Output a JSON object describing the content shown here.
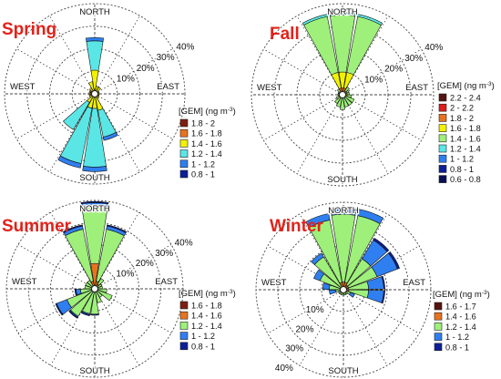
{
  "unit_label": "[GEM] (ng m",
  "unit_power": "-3",
  "unit_close": ")",
  "chart_data": [
    {
      "type": "windrose",
      "title": "Spring",
      "directions": [
        "NORTH",
        "EAST",
        "SOUTH",
        "WEST"
      ],
      "radial_ticks": [
        "10%",
        "20%",
        "30%",
        "40%"
      ],
      "rmax": 40,
      "legend": [
        {
          "label": "1.8 - 2",
          "color": "#7b1f12"
        },
        {
          "label": "1.6 - 1.8",
          "color": "#e8731f"
        },
        {
          "label": "1.4 - 1.6",
          "color": "#f2f200"
        },
        {
          "label": "1.2 - 1.4",
          "color": "#5be6e6"
        },
        {
          "label": "1 - 1.2",
          "color": "#2f7ff0"
        },
        {
          "label": "0.8 - 1",
          "color": "#0c1f96"
        }
      ],
      "petals": [
        {
          "dir": 0,
          "segments": [
            0.5,
            1.5,
            8.5,
            13,
            1.5,
            0
          ]
        },
        {
          "dir": 20,
          "segments": [
            0.5,
            1,
            2,
            0,
            0,
            0
          ]
        },
        {
          "dir": 40,
          "segments": [
            0.5,
            1,
            2,
            0,
            0,
            0
          ]
        },
        {
          "dir": 60,
          "segments": [
            0.5,
            1,
            0.5,
            0,
            0,
            0
          ]
        },
        {
          "dir": 80,
          "segments": [
            0.5,
            0.5,
            1,
            0,
            0,
            0
          ]
        },
        {
          "dir": 100,
          "segments": [
            0.5,
            1,
            0.5,
            0,
            0,
            0
          ]
        },
        {
          "dir": 120,
          "segments": [
            0.5,
            1,
            0.5,
            0,
            0,
            0
          ]
        },
        {
          "dir": 140,
          "segments": [
            0.5,
            1,
            1,
            0,
            0,
            0
          ]
        },
        {
          "dir": 160,
          "segments": [
            0.5,
            1,
            6,
            12,
            1.5,
            0
          ]
        },
        {
          "dir": 180,
          "segments": [
            0.5,
            1,
            5,
            26,
            2,
            0
          ]
        },
        {
          "dir": 200,
          "segments": [
            0.5,
            1,
            5,
            25,
            2,
            0
          ]
        },
        {
          "dir": 220,
          "segments": [
            0.5,
            1,
            3,
            14,
            0,
            0
          ]
        },
        {
          "dir": 240,
          "segments": [
            0.5,
            1,
            1,
            0,
            0,
            0
          ]
        },
        {
          "dir": 260,
          "segments": [
            0.5,
            1.5,
            0.5,
            0,
            0,
            0
          ]
        },
        {
          "dir": 280,
          "segments": [
            0.5,
            1.5,
            0.5,
            0,
            0,
            0
          ]
        },
        {
          "dir": 300,
          "segments": [
            0.5,
            1.5,
            0.5,
            0,
            0,
            0
          ]
        },
        {
          "dir": 320,
          "segments": [
            0.5,
            1,
            1.5,
            0,
            0,
            0
          ]
        },
        {
          "dir": 340,
          "segments": [
            0.5,
            1,
            4,
            0,
            0,
            0
          ]
        }
      ]
    },
    {
      "type": "windrose",
      "title": "Fall",
      "directions": [
        "NORTH",
        "EAST",
        "SOUTH",
        "WEST"
      ],
      "radial_ticks": [
        "10%",
        "20%",
        "30%",
        "40%"
      ],
      "rmax": 40,
      "legend": [
        {
          "label": "2.2 - 2.4",
          "color": "#55120f"
        },
        {
          "label": "2 - 2.2",
          "color": "#e01b1b"
        },
        {
          "label": "1.8 - 2",
          "color": "#e8731f"
        },
        {
          "label": "1.6 - 1.8",
          "color": "#f2f200"
        },
        {
          "label": "1.4 - 1.6",
          "color": "#9ef07a"
        },
        {
          "label": "1.2 - 1.4",
          "color": "#5be6e6"
        },
        {
          "label": "1 - 1.2",
          "color": "#2f7ff0"
        },
        {
          "label": "0.8 - 1",
          "color": "#0c1f96"
        },
        {
          "label": "0.6 - 0.8",
          "color": "#0a0f55"
        }
      ],
      "petals": [
        {
          "dir": 0,
          "segments": [
            0,
            0,
            3,
            7,
            25,
            1,
            0,
            0,
            0
          ]
        },
        {
          "dir": 20,
          "segments": [
            0,
            0,
            3,
            7,
            25,
            1,
            0,
            0,
            0
          ]
        },
        {
          "dir": 340,
          "segments": [
            0,
            0,
            3,
            7,
            25,
            1,
            0,
            0,
            0
          ]
        },
        {
          "dir": 40,
          "segments": [
            0,
            0,
            1,
            1,
            2,
            0,
            0,
            0,
            0
          ]
        },
        {
          "dir": 60,
          "segments": [
            0,
            0,
            1,
            1,
            1,
            0,
            0,
            0,
            0
          ]
        },
        {
          "dir": 80,
          "segments": [
            0,
            0,
            0.5,
            1.5,
            1,
            0,
            0,
            0,
            0
          ]
        },
        {
          "dir": 100,
          "segments": [
            0,
            0,
            0.5,
            1.5,
            2,
            0,
            0,
            0,
            0
          ]
        },
        {
          "dir": 120,
          "segments": [
            0,
            0,
            0.5,
            1,
            4,
            0,
            0,
            0,
            0
          ]
        },
        {
          "dir": 140,
          "segments": [
            0,
            0,
            0.5,
            1,
            4,
            0,
            0,
            0,
            0
          ]
        },
        {
          "dir": 160,
          "segments": [
            0,
            0,
            0.5,
            1,
            4,
            0,
            0,
            0,
            0
          ]
        },
        {
          "dir": 180,
          "segments": [
            0,
            0,
            0.5,
            1,
            5,
            0,
            0,
            0,
            0
          ]
        },
        {
          "dir": 200,
          "segments": [
            0,
            0,
            0.5,
            1,
            4,
            0,
            0,
            0,
            0
          ]
        },
        {
          "dir": 220,
          "segments": [
            0,
            0,
            0.5,
            1,
            3,
            0,
            0,
            0,
            0
          ]
        },
        {
          "dir": 240,
          "segments": [
            0,
            0,
            0.5,
            1,
            1.5,
            0,
            0,
            0,
            0
          ]
        },
        {
          "dir": 260,
          "segments": [
            0,
            0,
            0.5,
            1,
            0.5,
            0,
            0,
            0,
            0
          ]
        },
        {
          "dir": 280,
          "segments": [
            0,
            0,
            0.5,
            1,
            0.5,
            0,
            0,
            0,
            0
          ]
        },
        {
          "dir": 300,
          "segments": [
            0,
            0,
            0.5,
            1,
            0.5,
            0,
            0,
            0,
            0
          ]
        },
        {
          "dir": 320,
          "segments": [
            0,
            0,
            0.5,
            1,
            1.5,
            0,
            0,
            0,
            0
          ]
        }
      ]
    },
    {
      "type": "windrose",
      "title": "Summer",
      "directions": [
        "NORTH",
        "EAST",
        "SOUTH",
        "WEST"
      ],
      "radial_ticks": [
        "10%",
        "20%",
        "30%",
        "40%"
      ],
      "rmax": 40,
      "legend": [
        {
          "label": "1.6 - 1.8",
          "color": "#7b1f12"
        },
        {
          "label": "1.4 - 1.6",
          "color": "#e8731f"
        },
        {
          "label": "1.2 - 1.4",
          "color": "#9ef07a"
        },
        {
          "label": "1 - 1.2",
          "color": "#2f7ff0"
        },
        {
          "label": "0.8 - 1",
          "color": "#0c1f96"
        }
      ],
      "petals": [
        {
          "dir": 0,
          "segments": [
            0.5,
            11,
            26,
            1.5,
            0.5
          ]
        },
        {
          "dir": 20,
          "segments": [
            0.5,
            3,
            24,
            1.5,
            0.5
          ]
        },
        {
          "dir": 340,
          "segments": [
            0.5,
            3,
            24,
            1.5,
            0.5
          ]
        },
        {
          "dir": 40,
          "segments": [
            0.5,
            2,
            3,
            0,
            0
          ]
        },
        {
          "dir": 60,
          "segments": [
            0.5,
            1,
            2,
            0,
            0
          ]
        },
        {
          "dir": 80,
          "segments": [
            0.5,
            1,
            2,
            0,
            0
          ]
        },
        {
          "dir": 100,
          "segments": [
            0.5,
            1,
            4,
            0,
            0
          ]
        },
        {
          "dir": 120,
          "segments": [
            0.5,
            1,
            7,
            0,
            0
          ]
        },
        {
          "dir": 140,
          "segments": [
            0.5,
            1,
            3,
            0,
            0
          ]
        },
        {
          "dir": 160,
          "segments": [
            0.5,
            1,
            5,
            0,
            0
          ]
        },
        {
          "dir": 180,
          "segments": [
            0.5,
            1,
            10,
            0,
            0.5
          ]
        },
        {
          "dir": 200,
          "segments": [
            0.5,
            1,
            10,
            0.5,
            0.5
          ]
        },
        {
          "dir": 220,
          "segments": [
            0.5,
            1,
            13,
            0.5,
            0.5
          ]
        },
        {
          "dir": 240,
          "segments": [
            0.5,
            1,
            12,
            5,
            0.5
          ]
        },
        {
          "dir": 260,
          "segments": [
            0.5,
            1,
            5,
            2,
            0.5
          ]
        },
        {
          "dir": 280,
          "segments": [
            0.5,
            1,
            3,
            0,
            0
          ]
        },
        {
          "dir": 300,
          "segments": [
            0.5,
            1,
            3,
            0,
            0
          ]
        },
        {
          "dir": 320,
          "segments": [
            0.5,
            1,
            3,
            0,
            0
          ]
        }
      ]
    },
    {
      "type": "windrose",
      "title": "Winter",
      "directions": [
        "NORTH",
        "EAST",
        "SOUTH",
        "WEST"
      ],
      "radial_ticks": [
        "10%",
        "20%",
        "30%",
        "40%"
      ],
      "rmax": 40,
      "legend": [
        {
          "label": "1.6 - 1.7",
          "color": "#55120f"
        },
        {
          "label": "1.4 - 1.6",
          "color": "#e8731f"
        },
        {
          "label": "1.2 - 1.4",
          "color": "#9ef07a"
        },
        {
          "label": "1 - 1.2",
          "color": "#2f7ff0"
        },
        {
          "label": "0.8 - 1",
          "color": "#0c1f96"
        }
      ],
      "petals": [
        {
          "dir": 0,
          "segments": [
            0.5,
            3,
            31,
            3,
            0
          ]
        },
        {
          "dir": 20,
          "segments": [
            0.5,
            3,
            31,
            3,
            0
          ]
        },
        {
          "dir": 340,
          "segments": [
            0.5,
            3,
            29,
            3,
            0
          ]
        },
        {
          "dir": 40,
          "segments": [
            0.5,
            2,
            14,
            10,
            1
          ]
        },
        {
          "dir": 60,
          "segments": [
            0.5,
            2,
            14,
            10,
            1
          ]
        },
        {
          "dir": 80,
          "segments": [
            0.5,
            2,
            9,
            7,
            0.5
          ]
        },
        {
          "dir": 100,
          "segments": [
            0.5,
            2,
            9,
            7,
            0.5
          ]
        },
        {
          "dir": 120,
          "segments": [
            0.5,
            1,
            2,
            2,
            0
          ]
        },
        {
          "dir": 140,
          "segments": [
            0.5,
            1,
            1,
            0,
            0
          ]
        },
        {
          "dir": 160,
          "segments": [
            0.5,
            1,
            1,
            0,
            0
          ]
        },
        {
          "dir": 180,
          "segments": [
            0.5,
            1,
            1,
            0,
            0
          ]
        },
        {
          "dir": 200,
          "segments": [
            0.5,
            1,
            1,
            0,
            0
          ]
        },
        {
          "dir": 220,
          "segments": [
            0.5,
            1,
            1,
            0,
            0
          ]
        },
        {
          "dir": 240,
          "segments": [
            0.5,
            1,
            1,
            0,
            0
          ]
        },
        {
          "dir": 260,
          "segments": [
            0.5,
            1,
            2,
            3,
            0
          ]
        },
        {
          "dir": 280,
          "segments": [
            0.5,
            1,
            5,
            3,
            0
          ]
        },
        {
          "dir": 300,
          "segments": [
            0.5,
            1,
            10,
            3,
            0
          ]
        },
        {
          "dir": 320,
          "segments": [
            0.5,
            1,
            16,
            2,
            0
          ]
        }
      ]
    }
  ]
}
